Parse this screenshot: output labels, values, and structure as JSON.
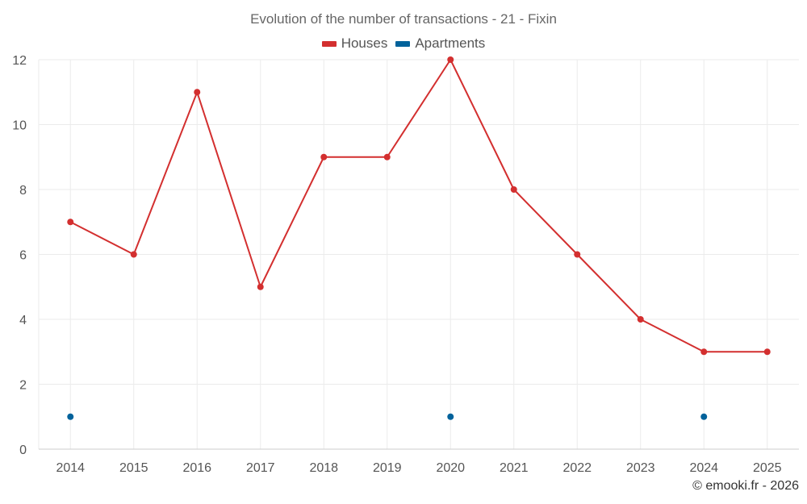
{
  "colors": {
    "houses": "#d32f2f",
    "apartments": "#01629b",
    "grid": "#ebebeb",
    "axis": "#cccccc"
  },
  "watermark": "© emooki.fr - 2026",
  "chart_data": {
    "type": "line",
    "title": "Evolution of the number of transactions - 21 - Fixin",
    "xlabel": "",
    "ylabel": "",
    "categories": [
      "2014",
      "2015",
      "2016",
      "2017",
      "2018",
      "2019",
      "2020",
      "2021",
      "2022",
      "2023",
      "2024",
      "2025"
    ],
    "ylim": [
      0,
      12
    ],
    "yticks": [
      0,
      2,
      4,
      6,
      8,
      10,
      12
    ],
    "legend": "top-center",
    "grid": true,
    "series": [
      {
        "name": "Houses",
        "color": "#d32f2f",
        "line": true,
        "values": [
          7,
          6,
          11,
          5,
          9,
          9,
          12,
          8,
          6,
          4,
          3,
          3
        ]
      },
      {
        "name": "Apartments",
        "color": "#01629b",
        "line": false,
        "values": [
          1,
          null,
          null,
          null,
          null,
          null,
          1,
          null,
          null,
          null,
          1,
          null
        ]
      }
    ]
  }
}
